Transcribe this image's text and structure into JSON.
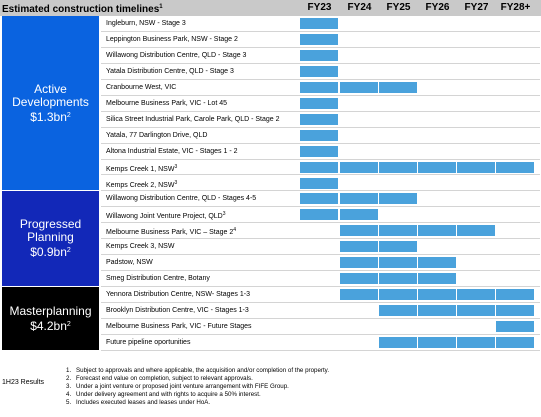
{
  "title": {
    "text": "Estimated construction timelines",
    "sup": "1"
  },
  "periods": [
    "FY23",
    "FY24",
    "FY25",
    "FY26",
    "FY27",
    "FY28+"
  ],
  "colors": {
    "bar": "#4aa2dc",
    "active": "#0a63e0",
    "progressed": "#1228b8",
    "master": "#000000",
    "header": "#c9c9c9"
  },
  "sections": [
    {
      "title": "Active Developments",
      "value": "$1.3bn",
      "sup": "2",
      "color": "#0a63e0",
      "rows": [
        {
          "label": "Ingleburn, NSW - Stage 3",
          "sup": "",
          "bars": [
            "FY23"
          ]
        },
        {
          "label": "Leppington Business Park, NSW - Stage 2",
          "sup": "",
          "bars": [
            "FY23"
          ]
        },
        {
          "label": "Willawong Distribution Centre, QLD - Stage 3",
          "sup": "",
          "bars": [
            "FY23"
          ]
        },
        {
          "label": "Yatala Distribution Centre, QLD - Stage 3",
          "sup": "",
          "bars": [
            "FY23"
          ]
        },
        {
          "label": "Cranbourne West, VIC",
          "sup": "",
          "bars": [
            "FY23",
            "FY24",
            "FY25"
          ]
        },
        {
          "label": "Melbourne Business Park, VIC - Lot 45",
          "sup": "",
          "bars": [
            "FY23"
          ]
        },
        {
          "label": "Silica Street Industrial Park, Carole Park, QLD - Stage 2",
          "sup": "",
          "bars": [
            "FY23"
          ]
        },
        {
          "label": "Yatala, 77 Darlington Drive, QLD",
          "sup": "",
          "bars": [
            "FY23"
          ]
        },
        {
          "label": "Altona Industrial Estate, VIC - Stages 1 - 2",
          "sup": "",
          "bars": [
            "FY23"
          ]
        },
        {
          "label": "Kemps Creek 1, NSW",
          "sup": "3",
          "bars": [
            "FY23",
            "FY24",
            "FY25",
            "FY26",
            "FY27",
            "FY28+"
          ]
        },
        {
          "label": "Kemps Creek 2, NSW",
          "sup": "3",
          "bars": [
            "FY23"
          ]
        }
      ]
    },
    {
      "title": "Progressed Planning",
      "value": "$0.9bn",
      "sup": "2",
      "color": "#1228b8",
      "rows": [
        {
          "label": "Willawong Distribution Centre, QLD - Stages 4-5",
          "sup": "",
          "bars": [
            "FY23",
            "FY24",
            "FY25"
          ]
        },
        {
          "label": "Willawong Joint Venture Project, QLD",
          "sup": "3",
          "bars": [
            "FY23",
            "FY24"
          ]
        },
        {
          "label": "Melbourne Business Park, VIC – Stage 2",
          "sup": "4",
          "bars": [
            "FY24",
            "FY25",
            "FY26",
            "FY27"
          ]
        },
        {
          "label": "Kemps Creek 3, NSW",
          "sup": "",
          "bars": [
            "FY24",
            "FY25"
          ]
        },
        {
          "label": "Padstow, NSW",
          "sup": "",
          "bars": [
            "FY24",
            "FY25",
            "FY26"
          ]
        },
        {
          "label": "Smeg Distribution Centre, Botany",
          "sup": "",
          "bars": [
            "FY24",
            "FY25",
            "FY26"
          ]
        }
      ]
    },
    {
      "title": "Masterplanning",
      "value": "$4.2bn",
      "sup": "2",
      "color": "#000000",
      "rows": [
        {
          "label": "Yennora Distribution Centre, NSW- Stages 1-3",
          "sup": "",
          "bars": [
            "FY24",
            "FY25",
            "FY26",
            "FY27",
            "FY28+"
          ]
        },
        {
          "label": "Brooklyn Distribution Centre, VIC - Stages 1-3",
          "sup": "",
          "bars": [
            "FY25",
            "FY26",
            "FY27",
            "FY28+"
          ]
        },
        {
          "label": "Melbourne Business Park, VIC - Future Stages",
          "sup": "",
          "bars": [
            "FY28+"
          ]
        },
        {
          "label": "Future pipeline oportunities",
          "sup": "",
          "bars": [
            "FY25",
            "FY26",
            "FY27",
            "FY28+"
          ]
        }
      ]
    }
  ],
  "footer": {
    "source": "1H23 Results",
    "notes": [
      {
        "num": "1.",
        "text": "Subject to approvals and where applicable, the acquisition and/or completion of the property."
      },
      {
        "num": "2.",
        "text": "Forecast end value on completion, subject to relevant approvals."
      },
      {
        "num": "3.",
        "text": "Under a joint venture or proposed joint venture arrangement with FIFE Group."
      },
      {
        "num": "4.",
        "text": "Under delivery agreement and with rights to acquire a 50% interest."
      },
      {
        "num": "5.",
        "text": "Includes executed leases and leases under HoA."
      }
    ]
  }
}
